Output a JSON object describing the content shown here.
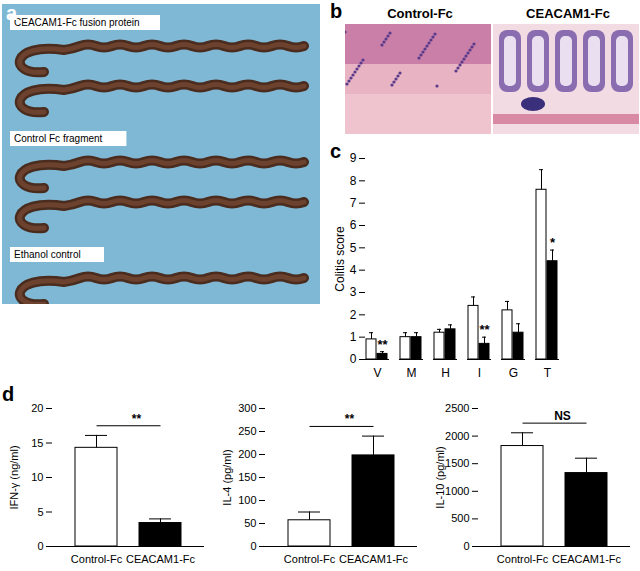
{
  "figure": {
    "a": {
      "label": "a",
      "captions": [
        "CEACAM1-Fc fusion protein",
        "Control Fc fragment",
        "Ethanol control"
      ]
    },
    "b": {
      "label": "b",
      "captions": [
        "Control-Fc",
        "CEACAM1-Fc"
      ]
    }
  },
  "chart_data": [
    {
      "type": "bar",
      "panel": "c",
      "categories": [
        "V",
        "M",
        "H",
        "I",
        "G",
        "T"
      ],
      "ylabel": "Colitis score",
      "ylim": [
        0,
        9
      ],
      "yticks": [
        0,
        1,
        2,
        3,
        4,
        5,
        6,
        7,
        8,
        9
      ],
      "series": [
        {
          "color": "#ffffff",
          "values": [
            0.9,
            1.0,
            1.2,
            2.4,
            2.2,
            7.6
          ],
          "errors": [
            0.3,
            0.2,
            0.15,
            0.4,
            0.4,
            0.9
          ]
        },
        {
          "color": "#000000",
          "values": [
            0.25,
            1.0,
            1.35,
            0.7,
            1.2,
            4.4
          ],
          "errors": [
            0.1,
            0.2,
            0.2,
            0.3,
            0.4,
            0.5
          ],
          "significance": [
            "**",
            null,
            null,
            "**",
            null,
            "*"
          ]
        }
      ]
    },
    {
      "type": "bar",
      "panel": "d",
      "categories": [
        "Control-Fc",
        "CEACAM1-Fc"
      ],
      "values": [
        14.3,
        3.4
      ],
      "errors": [
        1.8,
        0.6
      ],
      "colors": [
        "#ffffff",
        "#000000"
      ],
      "ylabel": "IFN-γ (ng/ml)",
      "ylim": [
        0,
        20
      ],
      "yticks": [
        0,
        5,
        10,
        15,
        20
      ],
      "significance": "**"
    },
    {
      "type": "bar",
      "categories": [
        "Control-Fc",
        "CEACAM1-Fc"
      ],
      "values": [
        57,
        198
      ],
      "errors": [
        18,
        42
      ],
      "colors": [
        "#ffffff",
        "#000000"
      ],
      "ylabel": "IL-4 (pg/ml)",
      "ylim": [
        0,
        300
      ],
      "yticks": [
        0,
        50,
        100,
        150,
        200,
        250,
        300
      ],
      "significance": "**"
    },
    {
      "type": "bar",
      "categories": [
        "Control-Fc",
        "CEACAM1-Fc"
      ],
      "values": [
        1820,
        1330
      ],
      "errors": [
        240,
        270
      ],
      "colors": [
        "#ffffff",
        "#000000"
      ],
      "ylabel": "IL-10 (pg/ml)",
      "ylim": [
        0,
        2500
      ],
      "yticks": [
        0,
        500,
        1000,
        1500,
        2000,
        2500
      ],
      "significance": "NS"
    }
  ]
}
